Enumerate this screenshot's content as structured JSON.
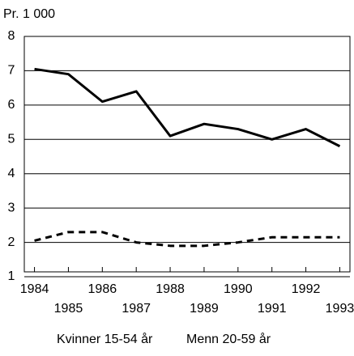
{
  "chart_data": {
    "type": "line",
    "y_axis_label": "Pr. 1 000",
    "x": [
      1984,
      1985,
      1986,
      1987,
      1988,
      1989,
      1990,
      1991,
      1992,
      1993
    ],
    "series": [
      {
        "name": "Kvinner 15-54 år",
        "color": "#000000",
        "dash": false,
        "values": [
          7.05,
          6.9,
          6.1,
          6.4,
          5.1,
          5.45,
          5.3,
          5.0,
          5.3,
          4.8
        ]
      },
      {
        "name": "Menn 20-59 år",
        "color": "#000000",
        "dash": true,
        "values": [
          2.05,
          2.3,
          2.3,
          2.0,
          1.9,
          1.9,
          2.0,
          2.15,
          2.15,
          2.15
        ]
      }
    ],
    "xlim": [
      1983.7,
      1993.3
    ],
    "xticks": [
      1984,
      1985,
      1986,
      1987,
      1988,
      1989,
      1990,
      1991,
      1992,
      1993
    ],
    "ylim": [
      1,
      8
    ],
    "yticks": [
      1,
      2,
      3,
      4,
      5,
      6,
      7,
      8
    ],
    "grid": true
  }
}
